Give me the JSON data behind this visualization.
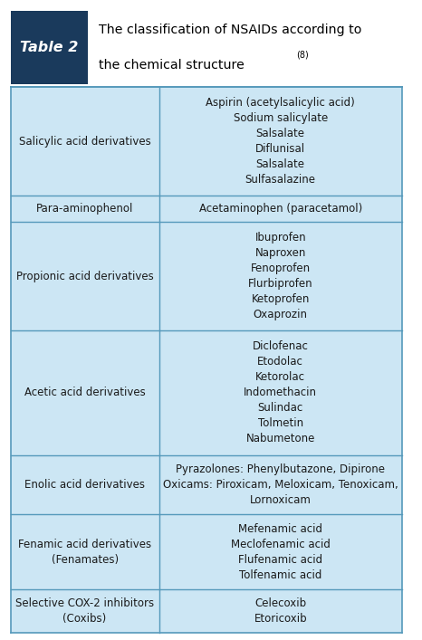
{
  "title_label": "Table 2",
  "title_text_line1": "The classification of NSAIDs according to",
  "title_text_line2": "the chemical structure",
  "title_superscript": "(8)",
  "header_bg": "#1a3a5c",
  "header_label_color": "#ffffff",
  "table_bg": "#cce6f4",
  "grid_color": "#5599bb",
  "text_color": "#1a1a1a",
  "rows": [
    {
      "left": "Salicylic acid derivatives",
      "right": "Aspirin (acetylsalicylic acid)\nSodium salicylate\nSalsalate\nDiflunisal\nSalsalate\nSulfasalazine"
    },
    {
      "left": "Para-aminophenol",
      "right": "Acetaminophen (paracetamol)"
    },
    {
      "left": "Propionic acid derivatives",
      "right": "Ibuprofen\nNaproxen\nFenoprofen\nFlurbiprofen\nKetoprofen\nOxaprozin"
    },
    {
      "left": "Acetic acid derivatives",
      "right": "Diclofenac\nEtodolac\nKetorolac\nIndomethacin\nSulindac\nTolmetin\nNabumetone"
    },
    {
      "left": "Enolic acid derivatives",
      "right": "Pyrazolones: Phenylbutazone, Dipirone\nOxicams: Piroxicam, Meloxicam, Tenoxicam,\nLornoxicam"
    },
    {
      "left": "Fenamic acid derivatives\n(Fenamates)",
      "right": "Mefenamic acid\nMeclofenamic acid\nFlufenamic acid\nTolfenamic acid"
    },
    {
      "left": "Selective COX-2 inhibitors\n(Coxibs)",
      "right": "Celecoxib\nEtoricoxib"
    }
  ],
  "col_split": 0.38,
  "figsize": [
    4.66,
    7.07
  ],
  "dpi": 100
}
